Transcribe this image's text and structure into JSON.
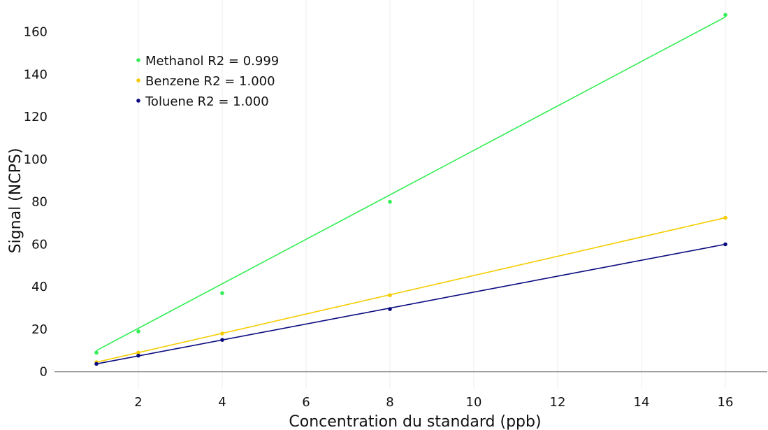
{
  "chart_data": {
    "type": "scatter",
    "xlabel": "Concentration du standard (ppb)",
    "ylabel": "Signal (NCPS)",
    "xlim": [
      0,
      17
    ],
    "ylim": [
      -8,
      175
    ],
    "xticks": [
      2,
      4,
      6,
      8,
      10,
      12,
      14,
      16
    ],
    "yticks": [
      0,
      20,
      40,
      60,
      80,
      100,
      120,
      140,
      160
    ],
    "grid": "vertical",
    "legend_position": "top-left",
    "series": [
      {
        "name": "Methanol",
        "legend_label": "Methanol  R2 =  0.999",
        "color": "#33ee55",
        "x": [
          1,
          2,
          4,
          8,
          16
        ],
        "y": [
          9,
          19,
          37,
          80,
          168
        ],
        "fit": {
          "x": [
            1,
            16
          ],
          "y": [
            10,
            167
          ]
        }
      },
      {
        "name": "Benzene",
        "legend_label": "Benzene  R2 =  1.000",
        "color": "#f5cc00",
        "x": [
          1,
          2,
          4,
          8,
          16
        ],
        "y": [
          4.5,
          9,
          18,
          36,
          72.5
        ],
        "fit": {
          "x": [
            1,
            16
          ],
          "y": [
            4.5,
            72.5
          ]
        }
      },
      {
        "name": "Toluene",
        "legend_label": "Toluene  R2 =  1.000",
        "color": "#0a0a80",
        "x": [
          1,
          2,
          4,
          8,
          16
        ],
        "y": [
          3.7,
          7.6,
          15,
          29.5,
          60
        ],
        "fit": {
          "x": [
            1,
            16
          ],
          "y": [
            3.7,
            60
          ]
        }
      }
    ]
  }
}
